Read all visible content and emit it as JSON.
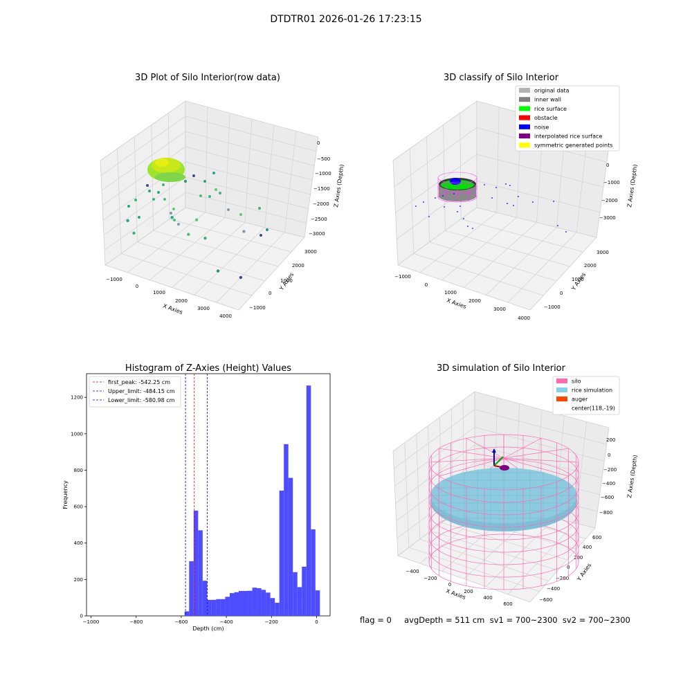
{
  "suptitle": "DTDTR01 2026-01-26 17:23:15",
  "status_line": "flag = 0     avgDepth = 511 cm  sv1 = 700~2300  sv2 = 700~2300",
  "chart_data": [
    {
      "type": "scatter3d",
      "title": "3D Plot of Silo Interior(row data)",
      "xlabel": "X Axies",
      "ylabel": "Y Axies",
      "zlabel": "Z Axies (Depth)",
      "xticks": [
        "−1000",
        "0",
        "1000",
        "2000",
        "3000",
        "4000"
      ],
      "yticks": [
        "−1000",
        "0",
        "1000",
        "2000",
        "3000"
      ],
      "zticks": [
        "0",
        "−500",
        "−1000",
        "−1500",
        "−2000",
        "−2500",
        "−3000"
      ],
      "points": [
        {
          "x": 2200,
          "y": -700,
          "z": -1100
        },
        {
          "x": 2700,
          "y": -900,
          "z": -1450
        },
        {
          "x": 3300,
          "y": -1000,
          "z": -2250
        },
        {
          "x": 3800,
          "y": -400,
          "z": -2550
        },
        {
          "x": 900,
          "y": -300,
          "z": -1500
        },
        {
          "x": -600,
          "y": -400,
          "z": -2300
        },
        {
          "x": -1000,
          "y": -200,
          "z": -2100
        },
        {
          "x": 1500,
          "y": -200,
          "z": -1900
        },
        {
          "x": 3200,
          "y": 600,
          "z": -1700
        }
      ]
    },
    {
      "type": "scatter3d",
      "title": "3D classify of Silo Interior",
      "xlabel": "X Axies",
      "ylabel": "Y Axies",
      "zlabel": "Z Axies (Depth)",
      "xticks": [
        "−1000",
        "0",
        "1000",
        "2000",
        "3000",
        "4000"
      ],
      "yticks": [
        "−1000",
        "0",
        "1000",
        "2000",
        "3000"
      ],
      "zticks": [
        "0",
        "−1000",
        "−2000",
        "−3000"
      ],
      "legend": [
        {
          "label": "original data",
          "color": "#b3b3b3"
        },
        {
          "label": "inner wall",
          "color": "#808080"
        },
        {
          "label": "rice surface",
          "color": "#00ff00"
        },
        {
          "label": "obstacle",
          "color": "#ff0000"
        },
        {
          "label": "noise",
          "color": "#0000ff"
        },
        {
          "label": "interpolated rice surface",
          "color": "#800080"
        },
        {
          "label": "symmetric generated points",
          "color": "#ffff00"
        }
      ],
      "legend_loc": "upper right"
    },
    {
      "type": "histogram",
      "title": "Histogram of Z-Axies (Height) Values",
      "xlabel": "Depth (cm)",
      "ylabel": "Frequency",
      "xlim": [
        -1020,
        60
      ],
      "ylim": [
        0,
        1330
      ],
      "xticks": [
        -1000,
        -800,
        -600,
        -400,
        -200,
        0
      ],
      "yticks": [
        0,
        200,
        400,
        600,
        800,
        1000,
        1200
      ],
      "bar_color": "#4d4dff",
      "bins": [
        {
          "x0": -585,
          "x1": -565,
          "count": 25
        },
        {
          "x0": -565,
          "x1": -545,
          "count": 300
        },
        {
          "x0": -545,
          "x1": -525,
          "count": 578
        },
        {
          "x0": -525,
          "x1": -505,
          "count": 470
        },
        {
          "x0": -505,
          "x1": -485,
          "count": 193
        },
        {
          "x0": -485,
          "x1": -465,
          "count": 88
        },
        {
          "x0": -465,
          "x1": -445,
          "count": 88
        },
        {
          "x0": -445,
          "x1": -425,
          "count": 92
        },
        {
          "x0": -425,
          "x1": -405,
          "count": 92
        },
        {
          "x0": -405,
          "x1": -385,
          "count": 105
        },
        {
          "x0": -385,
          "x1": -365,
          "count": 125
        },
        {
          "x0": -365,
          "x1": -345,
          "count": 130
        },
        {
          "x0": -345,
          "x1": -325,
          "count": 137
        },
        {
          "x0": -325,
          "x1": -305,
          "count": 137
        },
        {
          "x0": -305,
          "x1": -285,
          "count": 138
        },
        {
          "x0": -285,
          "x1": -265,
          "count": 155
        },
        {
          "x0": -265,
          "x1": -245,
          "count": 152
        },
        {
          "x0": -245,
          "x1": -225,
          "count": 143
        },
        {
          "x0": -225,
          "x1": -205,
          "count": 128
        },
        {
          "x0": -205,
          "x1": -185,
          "count": 98
        },
        {
          "x0": -185,
          "x1": -165,
          "count": 72
        },
        {
          "x0": -165,
          "x1": -145,
          "count": 688
        },
        {
          "x0": -145,
          "x1": -125,
          "count": 943
        },
        {
          "x0": -125,
          "x1": -105,
          "count": 758
        },
        {
          "x0": -105,
          "x1": -85,
          "count": 240
        },
        {
          "x0": -85,
          "x1": -65,
          "count": 158
        },
        {
          "x0": -65,
          "x1": -45,
          "count": 270
        },
        {
          "x0": -45,
          "x1": -25,
          "count": 1265
        },
        {
          "x0": -25,
          "x1": -5,
          "count": 475
        },
        {
          "x0": -5,
          "x1": 15,
          "count": 140
        }
      ],
      "vlines": [
        {
          "label": "first_peak: -542.25 cm",
          "x": -542.25,
          "color": "#ff0000"
        },
        {
          "label": "Upper_limit: -484.15 cm",
          "x": -484.15,
          "color": "#0000ff"
        },
        {
          "label": "Lower_limit: -580.98 cm",
          "x": -580.98,
          "color": "#0000ff"
        }
      ],
      "legend_loc": "upper left"
    },
    {
      "type": "surface3d",
      "title": "3D simulation of Silo Interior",
      "xlabel": "X Axies",
      "ylabel": "Y Axies",
      "zlabel": "Z Axies (Depth)",
      "xticks": [
        "−400",
        "−200",
        "0",
        "200",
        "400",
        "600"
      ],
      "yticks": [
        "−600",
        "−400",
        "−200",
        "0",
        "200",
        "400",
        "600"
      ],
      "zticks": [
        "200",
        "0",
        "−200",
        "−400",
        "−600",
        "−800"
      ],
      "legend": [
        {
          "label": "silo",
          "color": "#ff69b4"
        },
        {
          "label": "rice simulation",
          "color": "#87ceeb"
        },
        {
          "label": "auger",
          "color": "#ff4500"
        },
        {
          "label": "center(118,-19)",
          "color": ""
        }
      ],
      "legend_loc": "upper right"
    }
  ]
}
